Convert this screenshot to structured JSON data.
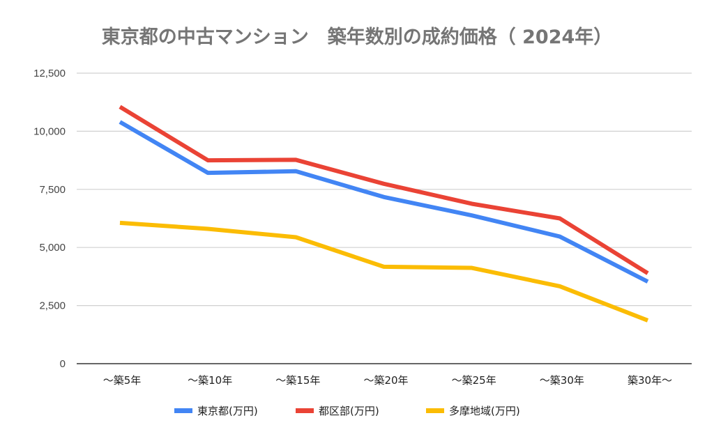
{
  "chart_data": {
    "type": "line",
    "title": "東京都の中古マンション　築年数別の成約価格（ 2024年）",
    "xlabel": "",
    "ylabel": "",
    "categories": [
      "～築5年",
      "～築10年",
      "～築15年",
      "～築20年",
      "～築25年",
      "～築30年",
      "築30年～"
    ],
    "ylim": [
      0,
      12500
    ],
    "yticks": [
      0,
      2500,
      5000,
      7500,
      10000,
      12500
    ],
    "ytick_labels": [
      "0",
      "2,500",
      "5,000",
      "7,500",
      "10,000",
      "12,500"
    ],
    "grid": true,
    "legend_position": "bottom",
    "series": [
      {
        "name": "東京都(万円)",
        "color": "#4285F4",
        "values": [
          10400,
          8210,
          8280,
          7170,
          6380,
          5470,
          3530
        ]
      },
      {
        "name": "都区部(万円)",
        "color": "#EA4335",
        "values": [
          11050,
          8750,
          8770,
          7740,
          6880,
          6250,
          3890
        ]
      },
      {
        "name": "多摩地域(万円)",
        "color": "#FBBC04",
        "values": [
          6060,
          5800,
          5440,
          4170,
          4120,
          3330,
          1860
        ]
      }
    ]
  }
}
